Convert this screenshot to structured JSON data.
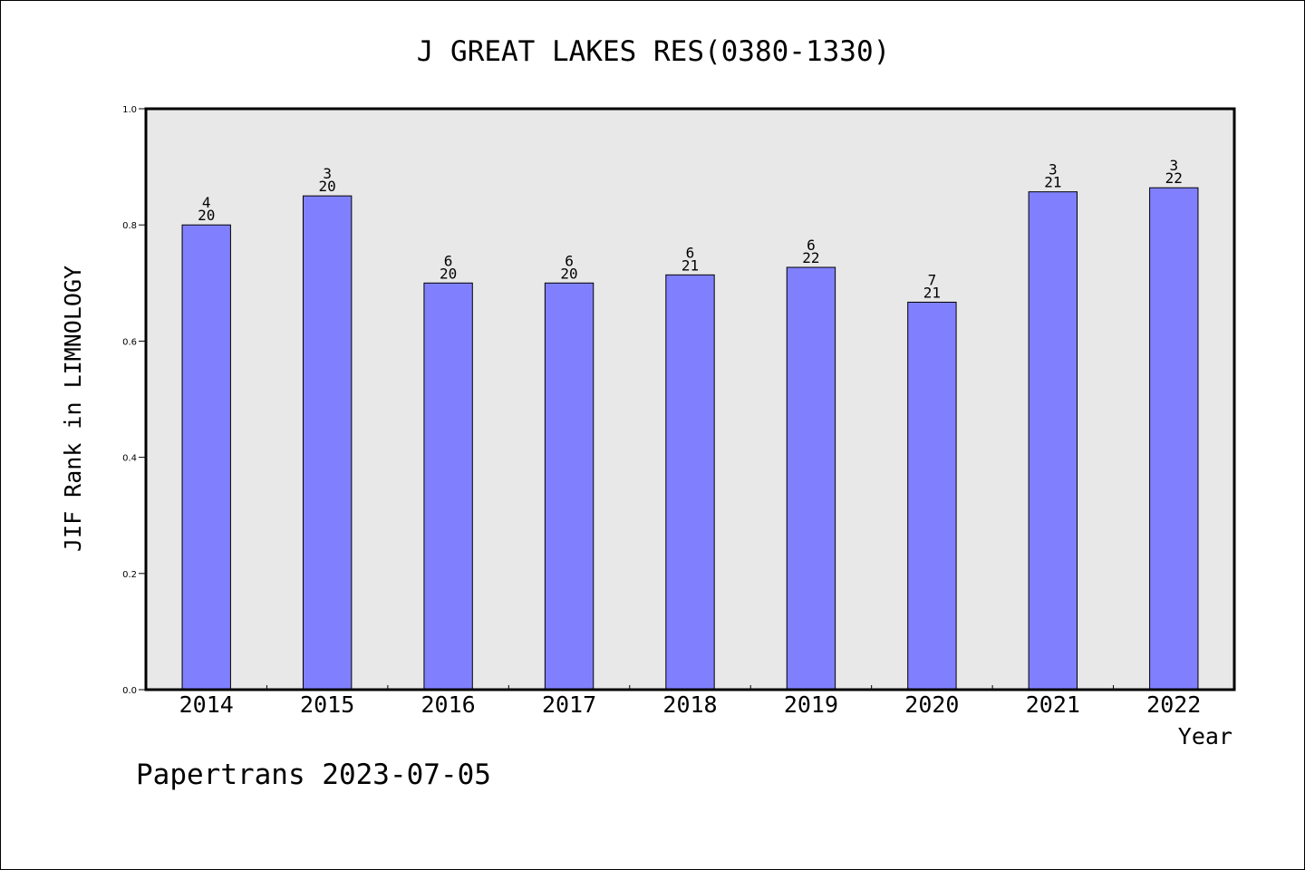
{
  "footer_text": "Papertrans 2023-07-05",
  "colors": {
    "bar_fill": "#8080ff",
    "bar_stroke": "#000000",
    "plot_background": "#e8e8e8",
    "axes_frame": "#000000",
    "figure_background": "#ffffff"
  },
  "chart_data": {
    "type": "bar",
    "title": "J GREAT LAKES RES(0380-1330)",
    "xlabel": "Year",
    "ylabel": "JIF Rank in LIMNOLOGY",
    "ylim": [
      0,
      1.0
    ],
    "yticks": [
      "0.0",
      "0.2",
      "0.4",
      "0.6",
      "0.8",
      "1.0"
    ],
    "grid": false,
    "legend": "none",
    "categories": [
      "2014",
      "2015",
      "2016",
      "2017",
      "2018",
      "2019",
      "2020",
      "2021",
      "2022"
    ],
    "values": [
      0.8,
      0.85,
      0.7,
      0.7,
      0.714,
      0.727,
      0.667,
      0.857,
      0.864
    ],
    "annotations": [
      {
        "rank": "4",
        "total": "20"
      },
      {
        "rank": "3",
        "total": "20"
      },
      {
        "rank": "6",
        "total": "20"
      },
      {
        "rank": "6",
        "total": "20"
      },
      {
        "rank": "6",
        "total": "21"
      },
      {
        "rank": "6",
        "total": "22"
      },
      {
        "rank": "7",
        "total": "21"
      },
      {
        "rank": "3",
        "total": "21"
      },
      {
        "rank": "3",
        "total": "22"
      }
    ]
  }
}
